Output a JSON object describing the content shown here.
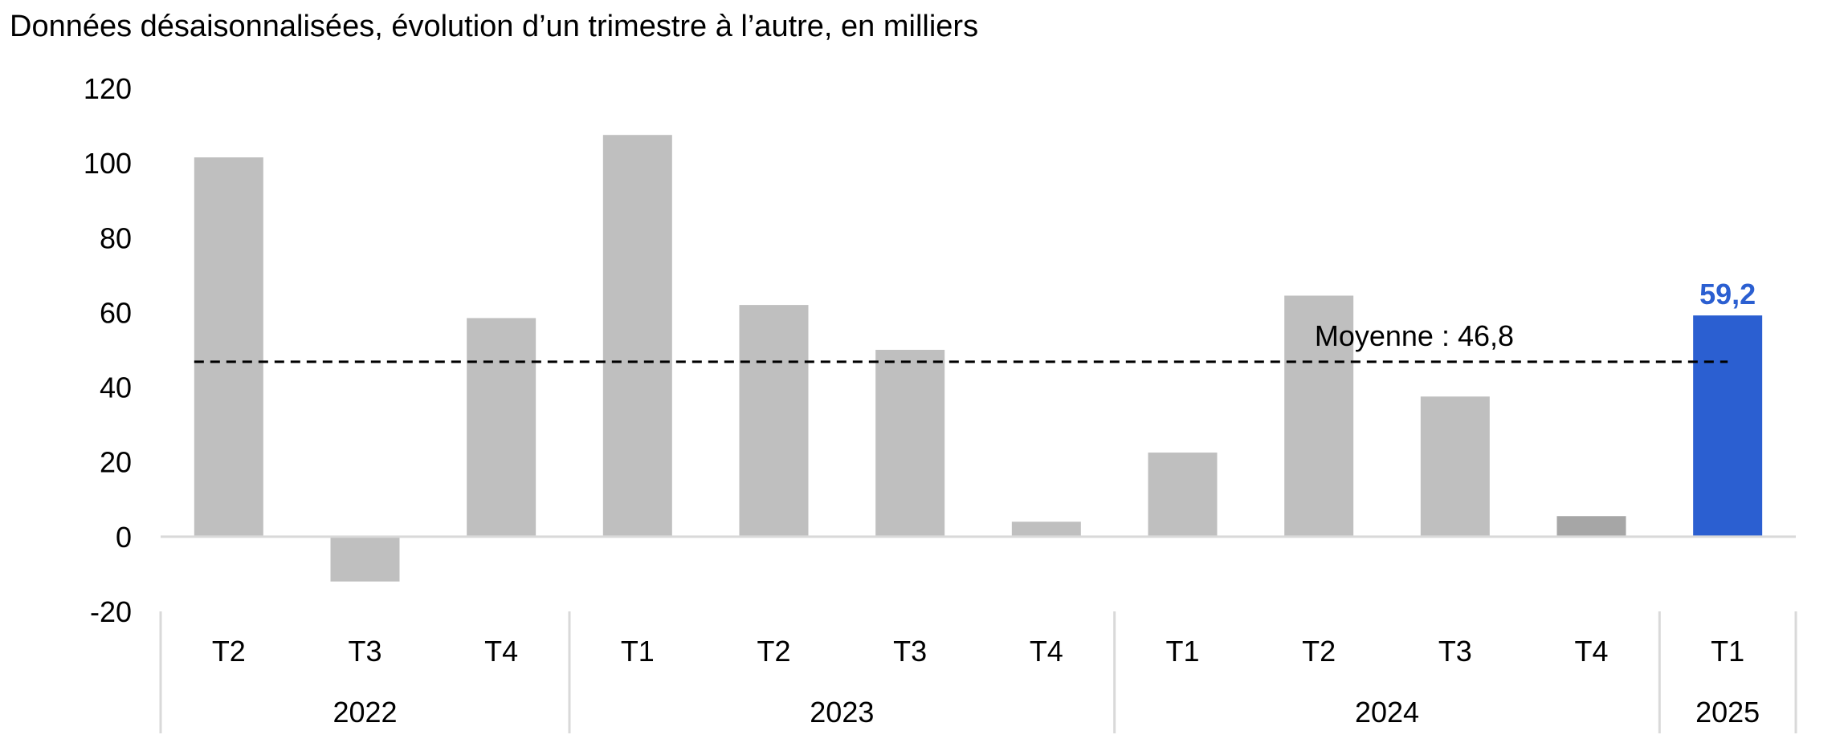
{
  "title": "Données désaisonnalisées, évolution d’un trimestre à l’autre, en milliers",
  "colors": {
    "bar": "#bfbfbf",
    "bar_provisional": "#a6a6a6",
    "highlight": "#2b5fd1",
    "axis": "#d9d9d9",
    "text": "#000000",
    "average_line": "#000000"
  },
  "chart_data": {
    "type": "bar",
    "title": "Données désaisonnalisées, évolution d’un trimestre à l’autre, en milliers",
    "xlabel": "",
    "ylabel": "",
    "categories": [
      "T2",
      "T3",
      "T4",
      "T1",
      "T2",
      "T3",
      "T4",
      "T1",
      "T2",
      "T3",
      "T4",
      "T1"
    ],
    "years": [
      {
        "label": "2022",
        "count": 3
      },
      {
        "label": "2023",
        "count": 4
      },
      {
        "label": "2024",
        "count": 4
      },
      {
        "label": "2025",
        "count": 1
      }
    ],
    "series": [
      {
        "values": [
          101.5,
          -12,
          58.5,
          107.5,
          62,
          50,
          4,
          22.5,
          64.5,
          37.5,
          5.5,
          59.2
        ]
      }
    ],
    "highlight_index": 11,
    "highlight_label": "59,2",
    "provisional_index": 10,
    "ylim": [
      -20,
      120
    ],
    "yticks": [
      -20,
      0,
      20,
      40,
      60,
      80,
      100,
      120
    ],
    "average": {
      "value": 46.8,
      "label": "Moyenne : 46,8"
    },
    "grid": false,
    "legend": "none"
  }
}
